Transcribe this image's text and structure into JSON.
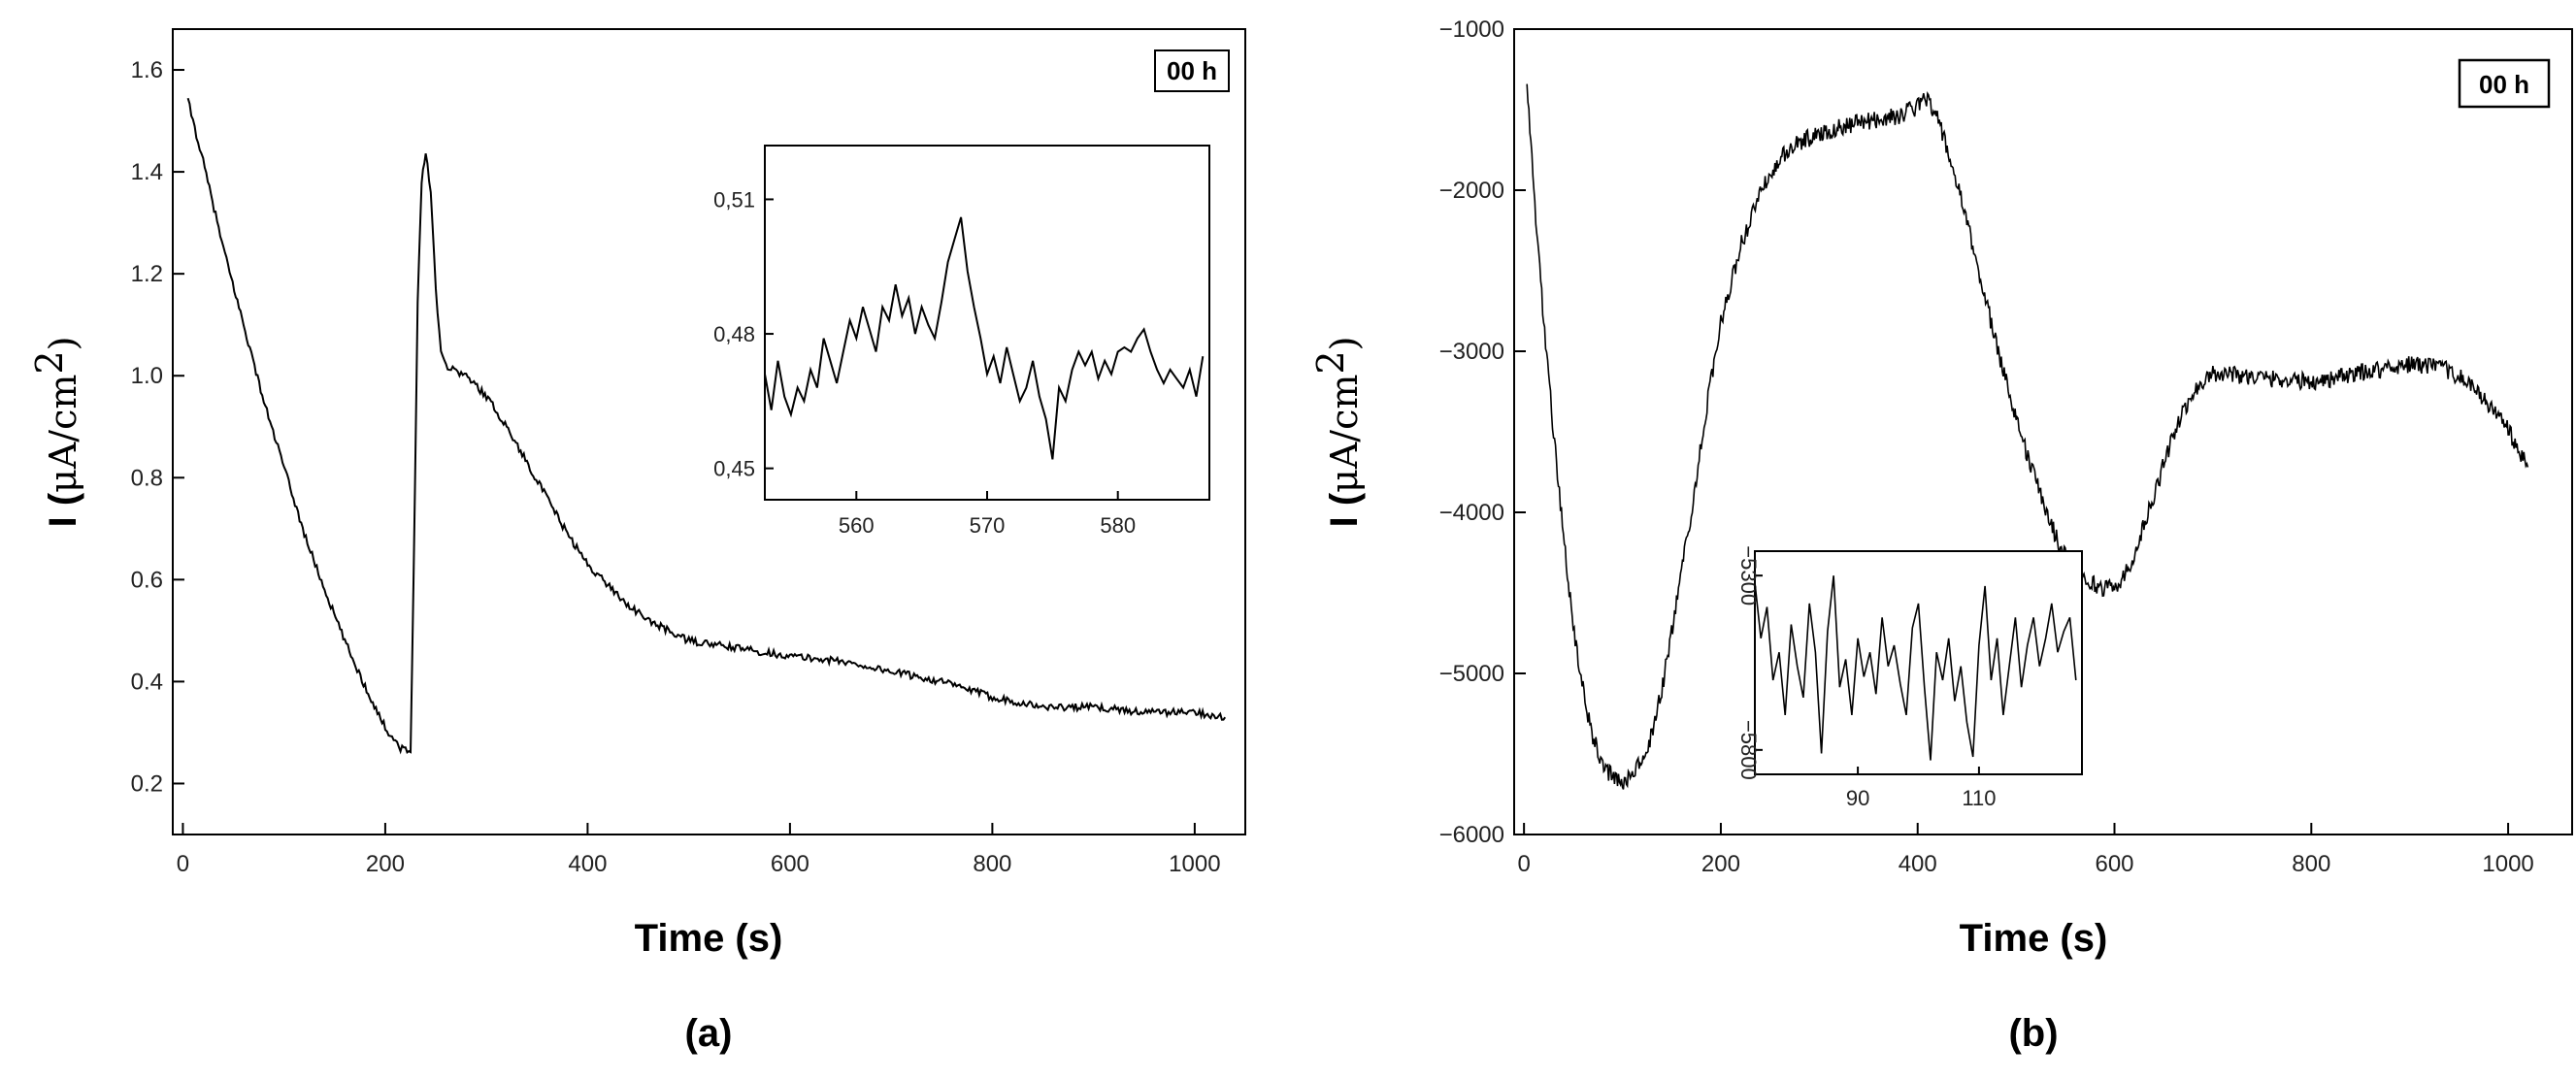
{
  "chart_data": [
    {
      "type": "line",
      "panel_label": "(a)",
      "badge": "00 h",
      "xlabel": "Time (s)",
      "ylabel_prefix": "I (",
      "ylabel_unit": "μA/cm",
      "ylabel_sup": "2",
      "ylabel_suffix": ")",
      "xlim": [
        -10,
        1050
      ],
      "ylim": [
        0.1,
        1.68
      ],
      "xticks": [
        "0",
        "200",
        "400",
        "600",
        "800",
        "1000"
      ],
      "xtick_values": [
        0,
        200,
        400,
        600,
        800,
        1000
      ],
      "yticks": [
        "0.2",
        "0.4",
        "0.6",
        "0.8",
        "1.0",
        "1.2",
        "1.4",
        "1.6"
      ],
      "ytick_values": [
        0.2,
        0.4,
        0.6,
        0.8,
        1.0,
        1.2,
        1.4,
        1.6
      ],
      "series": [
        {
          "x": [
            5,
            20,
            40,
            60,
            80,
            100,
            120,
            140,
            160,
            180,
            200,
            215,
            225,
            228,
            232,
            236,
            240,
            245,
            250,
            255,
            260,
            270,
            280,
            300,
            320,
            340,
            360,
            380,
            400,
            420,
            440,
            460,
            480,
            500,
            550,
            600,
            650,
            700,
            750,
            800,
            850,
            900,
            950,
            1000,
            1030
          ],
          "y": [
            1.54,
            1.42,
            1.25,
            1.1,
            0.95,
            0.82,
            0.69,
            0.58,
            0.48,
            0.39,
            0.31,
            0.27,
            0.26,
            0.6,
            1.15,
            1.38,
            1.44,
            1.36,
            1.17,
            1.05,
            1.02,
            1.01,
            1.0,
            0.96,
            0.9,
            0.83,
            0.76,
            0.69,
            0.63,
            0.59,
            0.55,
            0.52,
            0.5,
            0.48,
            0.465,
            0.45,
            0.44,
            0.42,
            0.4,
            0.37,
            0.35,
            0.35,
            0.34,
            0.34,
            0.33
          ],
          "noise": 0.007
        }
      ],
      "inset": {
        "xlim": [
          553,
          587
        ],
        "ylim": [
          0.443,
          0.522
        ],
        "xticks": [
          "560",
          "570",
          "580"
        ],
        "xtick_values": [
          560,
          570,
          580
        ],
        "yticks": [
          "0,45",
          "0,48",
          "0,51"
        ],
        "ytick_values": [
          0.45,
          0.48,
          0.51
        ],
        "x": [
          553,
          553.5,
          554,
          554.5,
          555,
          555.5,
          556,
          556.5,
          557,
          557.5,
          558,
          558.5,
          559,
          559.5,
          560,
          560.5,
          561,
          561.5,
          562,
          562.5,
          563,
          563.5,
          564,
          564.5,
          565,
          565.5,
          566,
          566.5,
          567,
          567.5,
          568,
          568.5,
          569,
          569.5,
          570,
          570.5,
          571,
          571.5,
          572,
          572.5,
          573,
          573.5,
          574,
          574.5,
          575,
          575.5,
          576,
          576.5,
          577,
          577.5,
          578,
          578.5,
          579,
          579.5,
          580,
          580.5,
          581,
          581.5,
          582,
          582.5,
          583,
          583.5,
          584,
          584.5,
          585,
          585.5,
          586,
          586.5
        ],
        "y": [
          0.471,
          0.463,
          0.474,
          0.466,
          0.462,
          0.468,
          0.465,
          0.472,
          0.468,
          0.479,
          0.474,
          0.469,
          0.476,
          0.483,
          0.479,
          0.486,
          0.481,
          0.476,
          0.486,
          0.483,
          0.491,
          0.484,
          0.488,
          0.48,
          0.486,
          0.482,
          0.479,
          0.487,
          0.496,
          0.501,
          0.506,
          0.494,
          0.486,
          0.479,
          0.471,
          0.475,
          0.469,
          0.477,
          0.471,
          0.465,
          0.468,
          0.474,
          0.466,
          0.461,
          0.452,
          0.468,
          0.465,
          0.472,
          0.476,
          0.473,
          0.476,
          0.47,
          0.474,
          0.471,
          0.476,
          0.477,
          0.476,
          0.479,
          0.481,
          0.476,
          0.472,
          0.469,
          0.472,
          0.47,
          0.468,
          0.472,
          0.466,
          0.475
        ]
      }
    },
    {
      "type": "line",
      "panel_label": "(b)",
      "badge": "00 h",
      "xlabel": "Time (s)",
      "ylabel_prefix": "I (",
      "ylabel_unit": "μA/cm",
      "ylabel_sup": "2",
      "ylabel_suffix": ")",
      "xlim": [
        -10,
        1065
      ],
      "ylim": [
        -6000,
        -1000
      ],
      "xticks": [
        "0",
        "200",
        "400",
        "600",
        "800",
        "1000"
      ],
      "xtick_values": [
        0,
        200,
        400,
        600,
        800,
        1000
      ],
      "yticks": [
        "−6000",
        "−5000",
        "−4000",
        "−3000",
        "−2000",
        "−1000"
      ],
      "ytick_values": [
        -6000,
        -5000,
        -4000,
        -3000,
        -2000,
        -1000
      ],
      "series": [
        {
          "x": [
            3,
            10,
            20,
            30,
            40,
            50,
            60,
            70,
            80,
            90,
            100,
            110,
            120,
            130,
            140,
            150,
            160,
            170,
            180,
            190,
            200,
            220,
            240,
            260,
            280,
            300,
            320,
            340,
            360,
            380,
            400,
            410,
            420,
            430,
            440,
            450,
            460,
            470,
            480,
            490,
            500,
            510,
            520,
            530,
            540,
            550,
            560,
            570,
            580,
            590,
            600,
            610,
            620,
            630,
            640,
            650,
            660,
            670,
            680,
            690,
            700,
            710,
            720,
            740,
            760,
            780,
            800,
            820,
            840,
            860,
            880,
            900,
            920,
            940,
            960,
            980,
            1000,
            1010,
            1020
          ],
          "y": [
            -1300,
            -2000,
            -2800,
            -3500,
            -4150,
            -4700,
            -5100,
            -5400,
            -5560,
            -5650,
            -5680,
            -5620,
            -5550,
            -5380,
            -5100,
            -4750,
            -4380,
            -4000,
            -3580,
            -3180,
            -2820,
            -2350,
            -2020,
            -1800,
            -1700,
            -1650,
            -1610,
            -1580,
            -1560,
            -1540,
            -1480,
            -1420,
            -1550,
            -1750,
            -1960,
            -2200,
            -2450,
            -2700,
            -2960,
            -3180,
            -3400,
            -3620,
            -3800,
            -3980,
            -4140,
            -4270,
            -4360,
            -4420,
            -4450,
            -4470,
            -4460,
            -4400,
            -4260,
            -4080,
            -3900,
            -3700,
            -3520,
            -3380,
            -3260,
            -3180,
            -3140,
            -3130,
            -3140,
            -3160,
            -3170,
            -3180,
            -3190,
            -3170,
            -3150,
            -3120,
            -3100,
            -3080,
            -3090,
            -3120,
            -3200,
            -3330,
            -3480,
            -3620,
            -3720
          ],
          "noise": 55
        }
      ],
      "inset": {
        "xlim": [
          73,
          127
        ],
        "ylim": [
          -5870,
          -5230
        ],
        "xticks": [
          "90",
          "110"
        ],
        "xtick_values": [
          90,
          110
        ],
        "yticks": [
          "−5800",
          "−5300"
        ],
        "ytick_values": [
          -5800,
          -5300
        ],
        "x": [
          73,
          74,
          75,
          76,
          77,
          78,
          79,
          80,
          81,
          82,
          83,
          84,
          85,
          86,
          87,
          88,
          89,
          90,
          91,
          92,
          93,
          94,
          95,
          96,
          97,
          98,
          99,
          100,
          101,
          102,
          103,
          104,
          105,
          106,
          107,
          108,
          109,
          110,
          111,
          112,
          113,
          114,
          115,
          116,
          117,
          118,
          119,
          120,
          121,
          122,
          123,
          124,
          125,
          126
        ],
        "y": [
          -5320,
          -5480,
          -5390,
          -5600,
          -5520,
          -5700,
          -5440,
          -5560,
          -5650,
          -5380,
          -5520,
          -5810,
          -5460,
          -5300,
          -5620,
          -5540,
          -5700,
          -5480,
          -5590,
          -5520,
          -5640,
          -5420,
          -5560,
          -5500,
          -5610,
          -5700,
          -5450,
          -5380,
          -5620,
          -5830,
          -5520,
          -5600,
          -5480,
          -5660,
          -5560,
          -5720,
          -5820,
          -5500,
          -5330,
          -5600,
          -5480,
          -5700,
          -5560,
          -5420,
          -5620,
          -5500,
          -5420,
          -5560,
          -5480,
          -5380,
          -5520,
          -5460,
          -5420,
          -5600
        ]
      }
    }
  ]
}
